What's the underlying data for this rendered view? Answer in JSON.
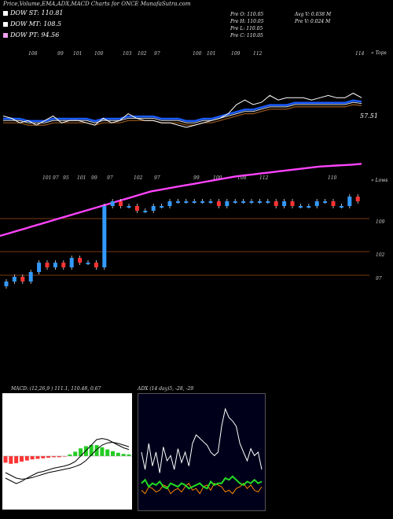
{
  "title": "Price,Volume,EMA,ADX,MACD Charts for ONCE MunafaSutra.com",
  "legend": [
    {
      "label": "DOW ST: 110.81",
      "color": "#ffffff"
    },
    {
      "label": "DOW MT: 108.5",
      "color": "#ffffff"
    },
    {
      "label": "DOW PT: 94.56",
      "color": "#f0a0f0"
    }
  ],
  "info": {
    "col1": [
      "Pre  O: 110.05",
      "Pre  H: 110.05",
      "Pre  L: 110.05",
      "Pre  C: 110.05"
    ],
    "col2": [
      "Avg V: 0.038  M",
      "Pre  V: 0.024  M"
    ]
  },
  "top_right_label": "« Tops",
  "mid_right_label": "« Lows",
  "last_price_label": "57.51",
  "top_numbers": [
    "108",
    "99",
    "101",
    "100",
    "103",
    "102",
    "97",
    "100",
    "101",
    "109",
    "112",
    "114"
  ],
  "low_numbers": [
    "101",
    "97",
    "95",
    "101",
    "99",
    "97",
    "102",
    "97",
    "99",
    "100",
    "108",
    "112",
    "110"
  ],
  "price_levels": [
    "109",
    "102",
    "97"
  ],
  "macd_title": "MACD: (12,26,9 ) 111.1, 110.48, 0.67",
  "adx_title": "ADX       (14  day)5, -28, -29",
  "colors": {
    "blue_ema": "#1a5cff",
    "magenta_pt": "#ff44ff",
    "up": "#3399ff",
    "down": "#ff3333",
    "macd_hist": "#22cc22",
    "adx_green": "#22dd22",
    "adx_orange": "#ff8800"
  },
  "chart_data": [
    {
      "type": "line",
      "title": "Price,Volume,EMA,ADX,MACD Charts for ONCE MunafaSutra.com",
      "series": [
        {
          "name": "DOW ST: 110.81",
          "values": [
            103,
            102,
            100,
            101,
            99,
            101,
            103,
            100,
            101,
            101,
            100,
            99,
            102,
            100,
            101,
            104,
            102,
            101,
            101,
            100,
            100,
            99,
            98,
            99,
            100,
            101,
            102,
            104,
            108,
            110,
            108,
            109,
            112,
            110,
            111,
            111,
            111,
            110,
            111,
            112,
            111,
            111,
            113,
            111
          ]
        },
        {
          "name": "DOW MT: 108.5",
          "values": [
            101,
            101,
            101,
            100,
            100,
            100,
            101,
            101,
            101,
            101,
            101,
            100,
            101,
            101,
            101,
            102,
            102,
            102,
            102,
            101,
            101,
            101,
            100,
            100,
            101,
            101,
            102,
            103,
            104,
            105,
            105,
            106,
            107,
            107,
            107,
            108,
            108,
            108,
            108,
            108,
            108,
            108,
            109,
            108.5
          ]
        },
        {
          "name": "DOW PT: 94.56",
          "values": [
            80,
            80.5,
            81,
            81.5,
            82,
            82.5,
            83,
            83.5,
            84,
            84.5,
            85,
            85.5,
            86,
            86.5,
            87,
            87.5,
            88,
            88.5,
            89,
            89.3,
            89.6,
            89.9,
            90.2,
            90.5,
            90.8,
            91.1,
            91.4,
            91.7,
            92,
            92.2,
            92.4,
            92.6,
            92.8,
            93,
            93.2,
            93.4,
            93.6,
            93.8,
            94,
            94.1,
            94.2,
            94.3,
            94.4,
            94.56
          ]
        }
      ]
    },
    {
      "type": "line",
      "title": "MACD: (12,26,9 ) 111.1, 110.48, 0.67",
      "series": [
        {
          "name": "macd",
          "values": [
            -4,
            -4.5,
            -5,
            -4.6,
            -4,
            -3.5,
            -3,
            -2.8,
            -2.5,
            -2.2,
            -2,
            -1.8,
            -1.5,
            -1,
            0,
            1,
            2,
            3,
            3.2,
            3,
            2.5,
            2,
            1.5,
            1.2
          ]
        },
        {
          "name": "signal",
          "values": [
            -3,
            -3.5,
            -4,
            -4.2,
            -4.1,
            -3.9,
            -3.6,
            -3.3,
            -3,
            -2.8,
            -2.6,
            -2.4,
            -2.2,
            -1.9,
            -1.5,
            -0.8,
            0.2,
            1.2,
            2,
            2.4,
            2.5,
            2.3,
            2,
            1.7
          ]
        },
        {
          "name": "histogram",
          "values": [
            -1.2,
            -1.4,
            -1.3,
            -1,
            -0.8,
            -0.6,
            -0.5,
            -0.4,
            -0.3,
            -0.2,
            -0.2,
            -0.1,
            0.3,
            0.8,
            1.4,
            1.8,
            2,
            2,
            1.6,
            1.2,
            0.9,
            0.6,
            0.4,
            0.3
          ]
        }
      ]
    },
    {
      "type": "line",
      "title": "ADX       (14  day)5, -28, -29",
      "series": [
        {
          "name": "adx",
          "values": [
            30,
            20,
            35,
            22,
            30,
            18,
            33,
            25,
            28,
            20,
            32,
            24,
            30,
            22,
            35,
            40,
            38,
            36,
            34,
            30,
            28,
            30,
            45,
            55,
            50,
            48,
            45,
            35,
            30,
            25,
            32,
            28,
            30,
            20
          ]
        },
        {
          "name": "plus",
          "values": [
            12,
            14,
            10,
            12,
            11,
            13,
            10,
            9,
            12,
            11,
            10,
            12,
            11,
            9,
            10,
            11,
            12,
            10,
            9,
            13,
            11,
            12,
            12,
            15,
            14,
            16,
            14,
            12,
            11,
            13,
            12,
            14,
            12,
            13
          ]
        },
        {
          "name": "minus",
          "values": [
            8,
            6,
            10,
            9,
            7,
            8,
            11,
            10,
            6,
            8,
            9,
            7,
            10,
            12,
            8,
            9,
            6,
            10,
            11,
            8,
            12,
            11,
            10,
            7,
            8,
            6,
            9,
            10,
            12,
            9,
            11,
            8,
            7,
            10
          ]
        }
      ]
    }
  ]
}
